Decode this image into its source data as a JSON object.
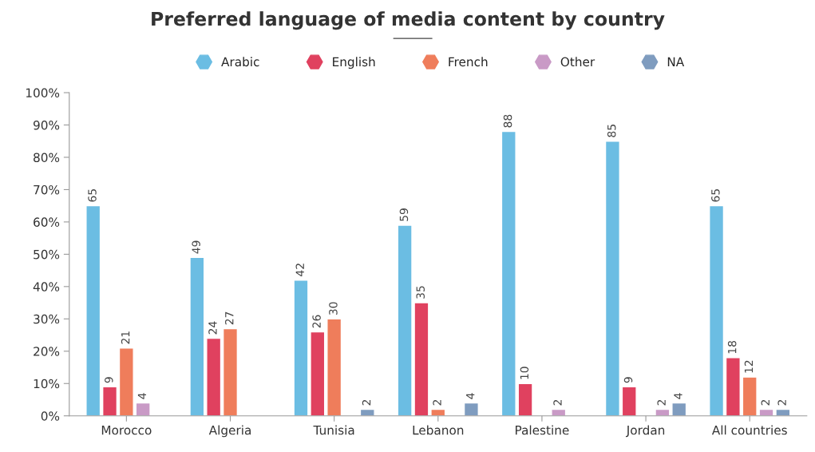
{
  "chart_data": {
    "type": "bar",
    "title": "Preferred language of media content by country",
    "categories": [
      "Morocco",
      "Algeria",
      "Tunisia",
      "Lebanon",
      "Palestine",
      "Jordan",
      "All countries"
    ],
    "series": [
      {
        "name": "Arabic",
        "color": "#6bbde3",
        "values": [
          65,
          49,
          42,
          59,
          88,
          85,
          65
        ]
      },
      {
        "name": "English",
        "color": "#e0415f",
        "values": [
          9,
          24,
          26,
          35,
          10,
          9,
          18
        ]
      },
      {
        "name": "French",
        "color": "#ef7d5b",
        "values": [
          21,
          27,
          30,
          2,
          null,
          null,
          12
        ]
      },
      {
        "name": "Other",
        "color": "#c99ac6",
        "values": [
          4,
          null,
          null,
          null,
          2,
          2,
          2
        ]
      },
      {
        "name": "NA",
        "color": "#7f9cbf",
        "values": [
          null,
          null,
          2,
          4,
          null,
          4,
          2
        ]
      }
    ],
    "ylim": [
      0,
      100
    ],
    "yticks": [
      {
        "value": 0,
        "label": "0%"
      },
      {
        "value": 10,
        "label": "10%"
      },
      {
        "value": 20,
        "label": "20%"
      },
      {
        "value": 30,
        "label": "30%"
      },
      {
        "value": 40,
        "label": "40%"
      },
      {
        "value": 50,
        "label": "50%"
      },
      {
        "value": 60,
        "label": "60%"
      },
      {
        "value": 70,
        "label": "70%"
      },
      {
        "value": 80,
        "label": "80%"
      },
      {
        "value": 90,
        "label": "90%"
      },
      {
        "value": 100,
        "label": "100%"
      }
    ],
    "data_labels": true,
    "grid": false,
    "legend": "top"
  }
}
